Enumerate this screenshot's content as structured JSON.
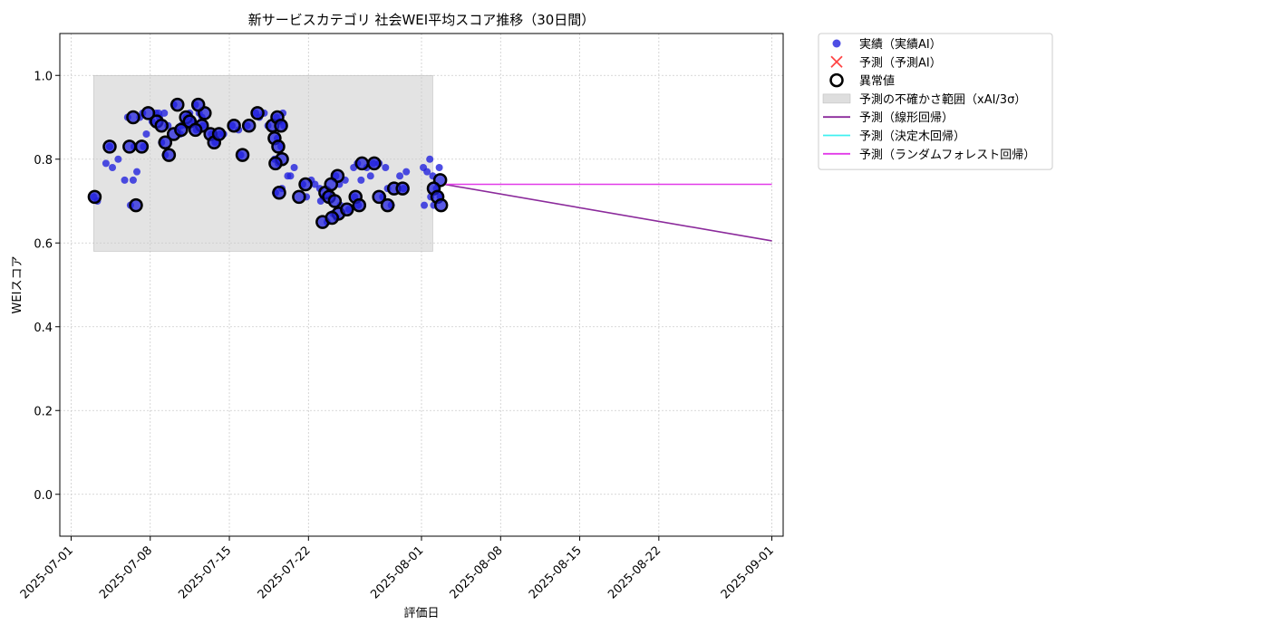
{
  "chart_data": {
    "type": "scatter",
    "title": "新サービスカテゴリ 社会WEI平均スコア推移（30日間）",
    "xlabel": "評価日",
    "ylabel": "WEIスコア",
    "xlim": [
      "2025-06-30",
      "2025-09-02"
    ],
    "ylim": [
      -0.1,
      1.1
    ],
    "x_ticks": [
      "2025-07-01",
      "2025-07-08",
      "2025-07-15",
      "2025-07-22",
      "2025-08-01",
      "2025-08-08",
      "2025-08-15",
      "2025-08-22",
      "2025-09-01"
    ],
    "y_ticks": [
      "0.0",
      "0.2",
      "0.4",
      "0.6",
      "0.8",
      "1.0"
    ],
    "grid": true,
    "legend_position": "outside-top-right",
    "colors": {
      "actual": "#2222dd",
      "predicted_ai": "#ff4444",
      "anomaly_edge": "#000000",
      "uncertainty": "#c8c8c8",
      "linear": "#8b2a9b",
      "decision_tree": "#40f0f0",
      "random_forest": "#e23ae8",
      "grid": "#cccccc"
    },
    "legend": [
      {
        "key": "actual",
        "label": "実績（実績AI）"
      },
      {
        "key": "predicted_ai",
        "label": "予測（予測AI）"
      },
      {
        "key": "anomaly",
        "label": "異常値"
      },
      {
        "key": "uncertainty",
        "label": "予測の不確かさ範囲（xAI/3σ）"
      },
      {
        "key": "linear",
        "label": "予測（線形回帰）"
      },
      {
        "key": "decision_tree",
        "label": "予測（決定木回帰）"
      },
      {
        "key": "random_forest",
        "label": "予測（ランダムフォレスト回帰）"
      }
    ],
    "uncertainty_band": {
      "x": [
        "2025-07-03",
        "2025-08-02"
      ],
      "y": [
        0.58,
        1.0
      ]
    },
    "series": [
      {
        "key": "actual",
        "points": [
          [
            "2025-07-03",
            0.71
          ],
          [
            "2025-07-03",
            0.7
          ],
          [
            "2025-07-04",
            0.78
          ],
          [
            "2025-07-04",
            0.79
          ],
          [
            "2025-07-04",
            0.83
          ],
          [
            "2025-07-05",
            0.75
          ],
          [
            "2025-07-05",
            0.8
          ],
          [
            "2025-07-06",
            0.75
          ],
          [
            "2025-07-06",
            0.77
          ],
          [
            "2025-07-06",
            0.69
          ],
          [
            "2025-07-06",
            0.83
          ],
          [
            "2025-07-06",
            0.9
          ],
          [
            "2025-07-07",
            0.91
          ],
          [
            "2025-07-07",
            0.86
          ],
          [
            "2025-07-07",
            0.9
          ],
          [
            "2025-07-07",
            0.83
          ],
          [
            "2025-07-08",
            0.91
          ],
          [
            "2025-07-08",
            0.89
          ],
          [
            "2025-07-08",
            0.91
          ],
          [
            "2025-07-08",
            0.9
          ],
          [
            "2025-07-09",
            0.91
          ],
          [
            "2025-07-09",
            0.88
          ],
          [
            "2025-07-09",
            0.84
          ],
          [
            "2025-07-09",
            0.81
          ],
          [
            "2025-07-10",
            0.86
          ],
          [
            "2025-07-10",
            0.93
          ],
          [
            "2025-07-10",
            0.87
          ],
          [
            "2025-07-10",
            0.88
          ],
          [
            "2025-07-11",
            0.9
          ],
          [
            "2025-07-11",
            0.91
          ],
          [
            "2025-07-11",
            0.89
          ],
          [
            "2025-07-11",
            0.88
          ],
          [
            "2025-07-12",
            0.9
          ],
          [
            "2025-07-12",
            0.93
          ],
          [
            "2025-07-12",
            0.91
          ],
          [
            "2025-07-12",
            0.88
          ],
          [
            "2025-07-12",
            0.87
          ],
          [
            "2025-07-13",
            0.86
          ],
          [
            "2025-07-13",
            0.84
          ],
          [
            "2025-07-14",
            0.86
          ],
          [
            "2025-07-14",
            0.86
          ],
          [
            "2025-07-15",
            0.87
          ],
          [
            "2025-07-15",
            0.88
          ],
          [
            "2025-07-16",
            0.88
          ],
          [
            "2025-07-16",
            0.81
          ],
          [
            "2025-07-17",
            0.91
          ],
          [
            "2025-07-17",
            0.9
          ],
          [
            "2025-07-18",
            0.91
          ],
          [
            "2025-07-18",
            0.88
          ],
          [
            "2025-07-19",
            0.91
          ],
          [
            "2025-07-19",
            0.9
          ],
          [
            "2025-07-19",
            0.89
          ],
          [
            "2025-07-19",
            0.88
          ],
          [
            "2025-07-19",
            0.85
          ],
          [
            "2025-07-19",
            0.83
          ],
          [
            "2025-07-19",
            0.8
          ],
          [
            "2025-07-19",
            0.79
          ],
          [
            "2025-07-19",
            0.73
          ],
          [
            "2025-07-19",
            0.72
          ],
          [
            "2025-07-20",
            0.76
          ],
          [
            "2025-07-20",
            0.78
          ],
          [
            "2025-07-20",
            0.76
          ],
          [
            "2025-07-21",
            0.74
          ],
          [
            "2025-07-21",
            0.71
          ],
          [
            "2025-07-22",
            0.75
          ],
          [
            "2025-07-22",
            0.74
          ],
          [
            "2025-07-23",
            0.73
          ],
          [
            "2025-07-23",
            0.71
          ],
          [
            "2025-07-23",
            0.65
          ],
          [
            "2025-07-23",
            0.7
          ],
          [
            "2025-07-24",
            0.76
          ],
          [
            "2025-07-24",
            0.74
          ],
          [
            "2025-07-24",
            0.67
          ],
          [
            "2025-07-24",
            0.66
          ],
          [
            "2025-07-24",
            0.69
          ],
          [
            "2025-07-25",
            0.75
          ],
          [
            "2025-07-25",
            0.68
          ],
          [
            "2025-07-26",
            0.78
          ],
          [
            "2025-07-26",
            0.79
          ],
          [
            "2025-07-26",
            0.75
          ],
          [
            "2025-07-26",
            0.71
          ],
          [
            "2025-07-26",
            0.69
          ],
          [
            "2025-07-27",
            0.79
          ],
          [
            "2025-07-27",
            0.78
          ],
          [
            "2025-07-27",
            0.76
          ],
          [
            "2025-07-28",
            0.78
          ],
          [
            "2025-07-28",
            0.79
          ],
          [
            "2025-07-28",
            0.71
          ],
          [
            "2025-07-29",
            0.73
          ],
          [
            "2025-07-29",
            0.69
          ],
          [
            "2025-07-30",
            0.77
          ],
          [
            "2025-07-30",
            0.76
          ],
          [
            "2025-07-30",
            0.73
          ],
          [
            "2025-08-01",
            0.8
          ],
          [
            "2025-08-01",
            0.78
          ],
          [
            "2025-08-01",
            0.77
          ],
          [
            "2025-08-01",
            0.71
          ],
          [
            "2025-08-01",
            0.69
          ],
          [
            "2025-08-02",
            0.78
          ],
          [
            "2025-08-02",
            0.76
          ],
          [
            "2025-08-02",
            0.73
          ],
          [
            "2025-08-02",
            0.71
          ],
          [
            "2025-08-02",
            0.69
          ]
        ]
      },
      {
        "key": "anomaly",
        "points": [
          [
            "2025-07-03",
            0.71
          ],
          [
            "2025-07-04",
            0.83
          ],
          [
            "2025-07-06",
            0.69
          ],
          [
            "2025-07-06",
            0.83
          ],
          [
            "2025-07-06",
            0.9
          ],
          [
            "2025-07-07",
            0.91
          ],
          [
            "2025-07-07",
            0.83
          ],
          [
            "2025-07-08",
            0.89
          ],
          [
            "2025-07-09",
            0.88
          ],
          [
            "2025-07-09",
            0.84
          ],
          [
            "2025-07-09",
            0.81
          ],
          [
            "2025-07-10",
            0.86
          ],
          [
            "2025-07-10",
            0.93
          ],
          [
            "2025-07-10",
            0.87
          ],
          [
            "2025-07-11",
            0.9
          ],
          [
            "2025-07-11",
            0.89
          ],
          [
            "2025-07-12",
            0.91
          ],
          [
            "2025-07-12",
            0.93
          ],
          [
            "2025-07-12",
            0.88
          ],
          [
            "2025-07-12",
            0.87
          ],
          [
            "2025-07-13",
            0.86
          ],
          [
            "2025-07-13",
            0.84
          ],
          [
            "2025-07-14",
            0.86
          ],
          [
            "2025-07-15",
            0.88
          ],
          [
            "2025-07-16",
            0.88
          ],
          [
            "2025-07-16",
            0.81
          ],
          [
            "2025-07-17",
            0.91
          ],
          [
            "2025-07-18",
            0.88
          ],
          [
            "2025-07-19",
            0.9
          ],
          [
            "2025-07-19",
            0.88
          ],
          [
            "2025-07-19",
            0.85
          ],
          [
            "2025-07-19",
            0.83
          ],
          [
            "2025-07-19",
            0.8
          ],
          [
            "2025-07-19",
            0.79
          ],
          [
            "2025-07-19",
            0.72
          ],
          [
            "2025-07-21",
            0.74
          ],
          [
            "2025-07-21",
            0.71
          ],
          [
            "2025-07-23",
            0.72
          ],
          [
            "2025-07-23",
            0.71
          ],
          [
            "2025-07-23",
            0.65
          ],
          [
            "2025-07-24",
            0.76
          ],
          [
            "2025-07-24",
            0.74
          ],
          [
            "2025-07-24",
            0.7
          ],
          [
            "2025-07-24",
            0.67
          ],
          [
            "2025-07-24",
            0.66
          ],
          [
            "2025-07-25",
            0.68
          ],
          [
            "2025-07-26",
            0.79
          ],
          [
            "2025-07-26",
            0.71
          ],
          [
            "2025-07-26",
            0.69
          ],
          [
            "2025-07-27",
            0.79
          ],
          [
            "2025-07-28",
            0.71
          ],
          [
            "2025-07-29",
            0.73
          ],
          [
            "2025-07-29",
            0.69
          ],
          [
            "2025-07-30",
            0.73
          ],
          [
            "2025-08-02",
            0.75
          ],
          [
            "2025-08-02",
            0.73
          ],
          [
            "2025-08-02",
            0.71
          ],
          [
            "2025-08-02",
            0.69
          ]
        ]
      },
      {
        "key": "linear",
        "points": [
          [
            "2025-08-03",
            0.74
          ],
          [
            "2025-09-01",
            0.605
          ]
        ]
      },
      {
        "key": "random_forest",
        "points": [
          [
            "2025-08-03",
            0.74
          ],
          [
            "2025-09-01",
            0.74
          ]
        ]
      }
    ]
  }
}
